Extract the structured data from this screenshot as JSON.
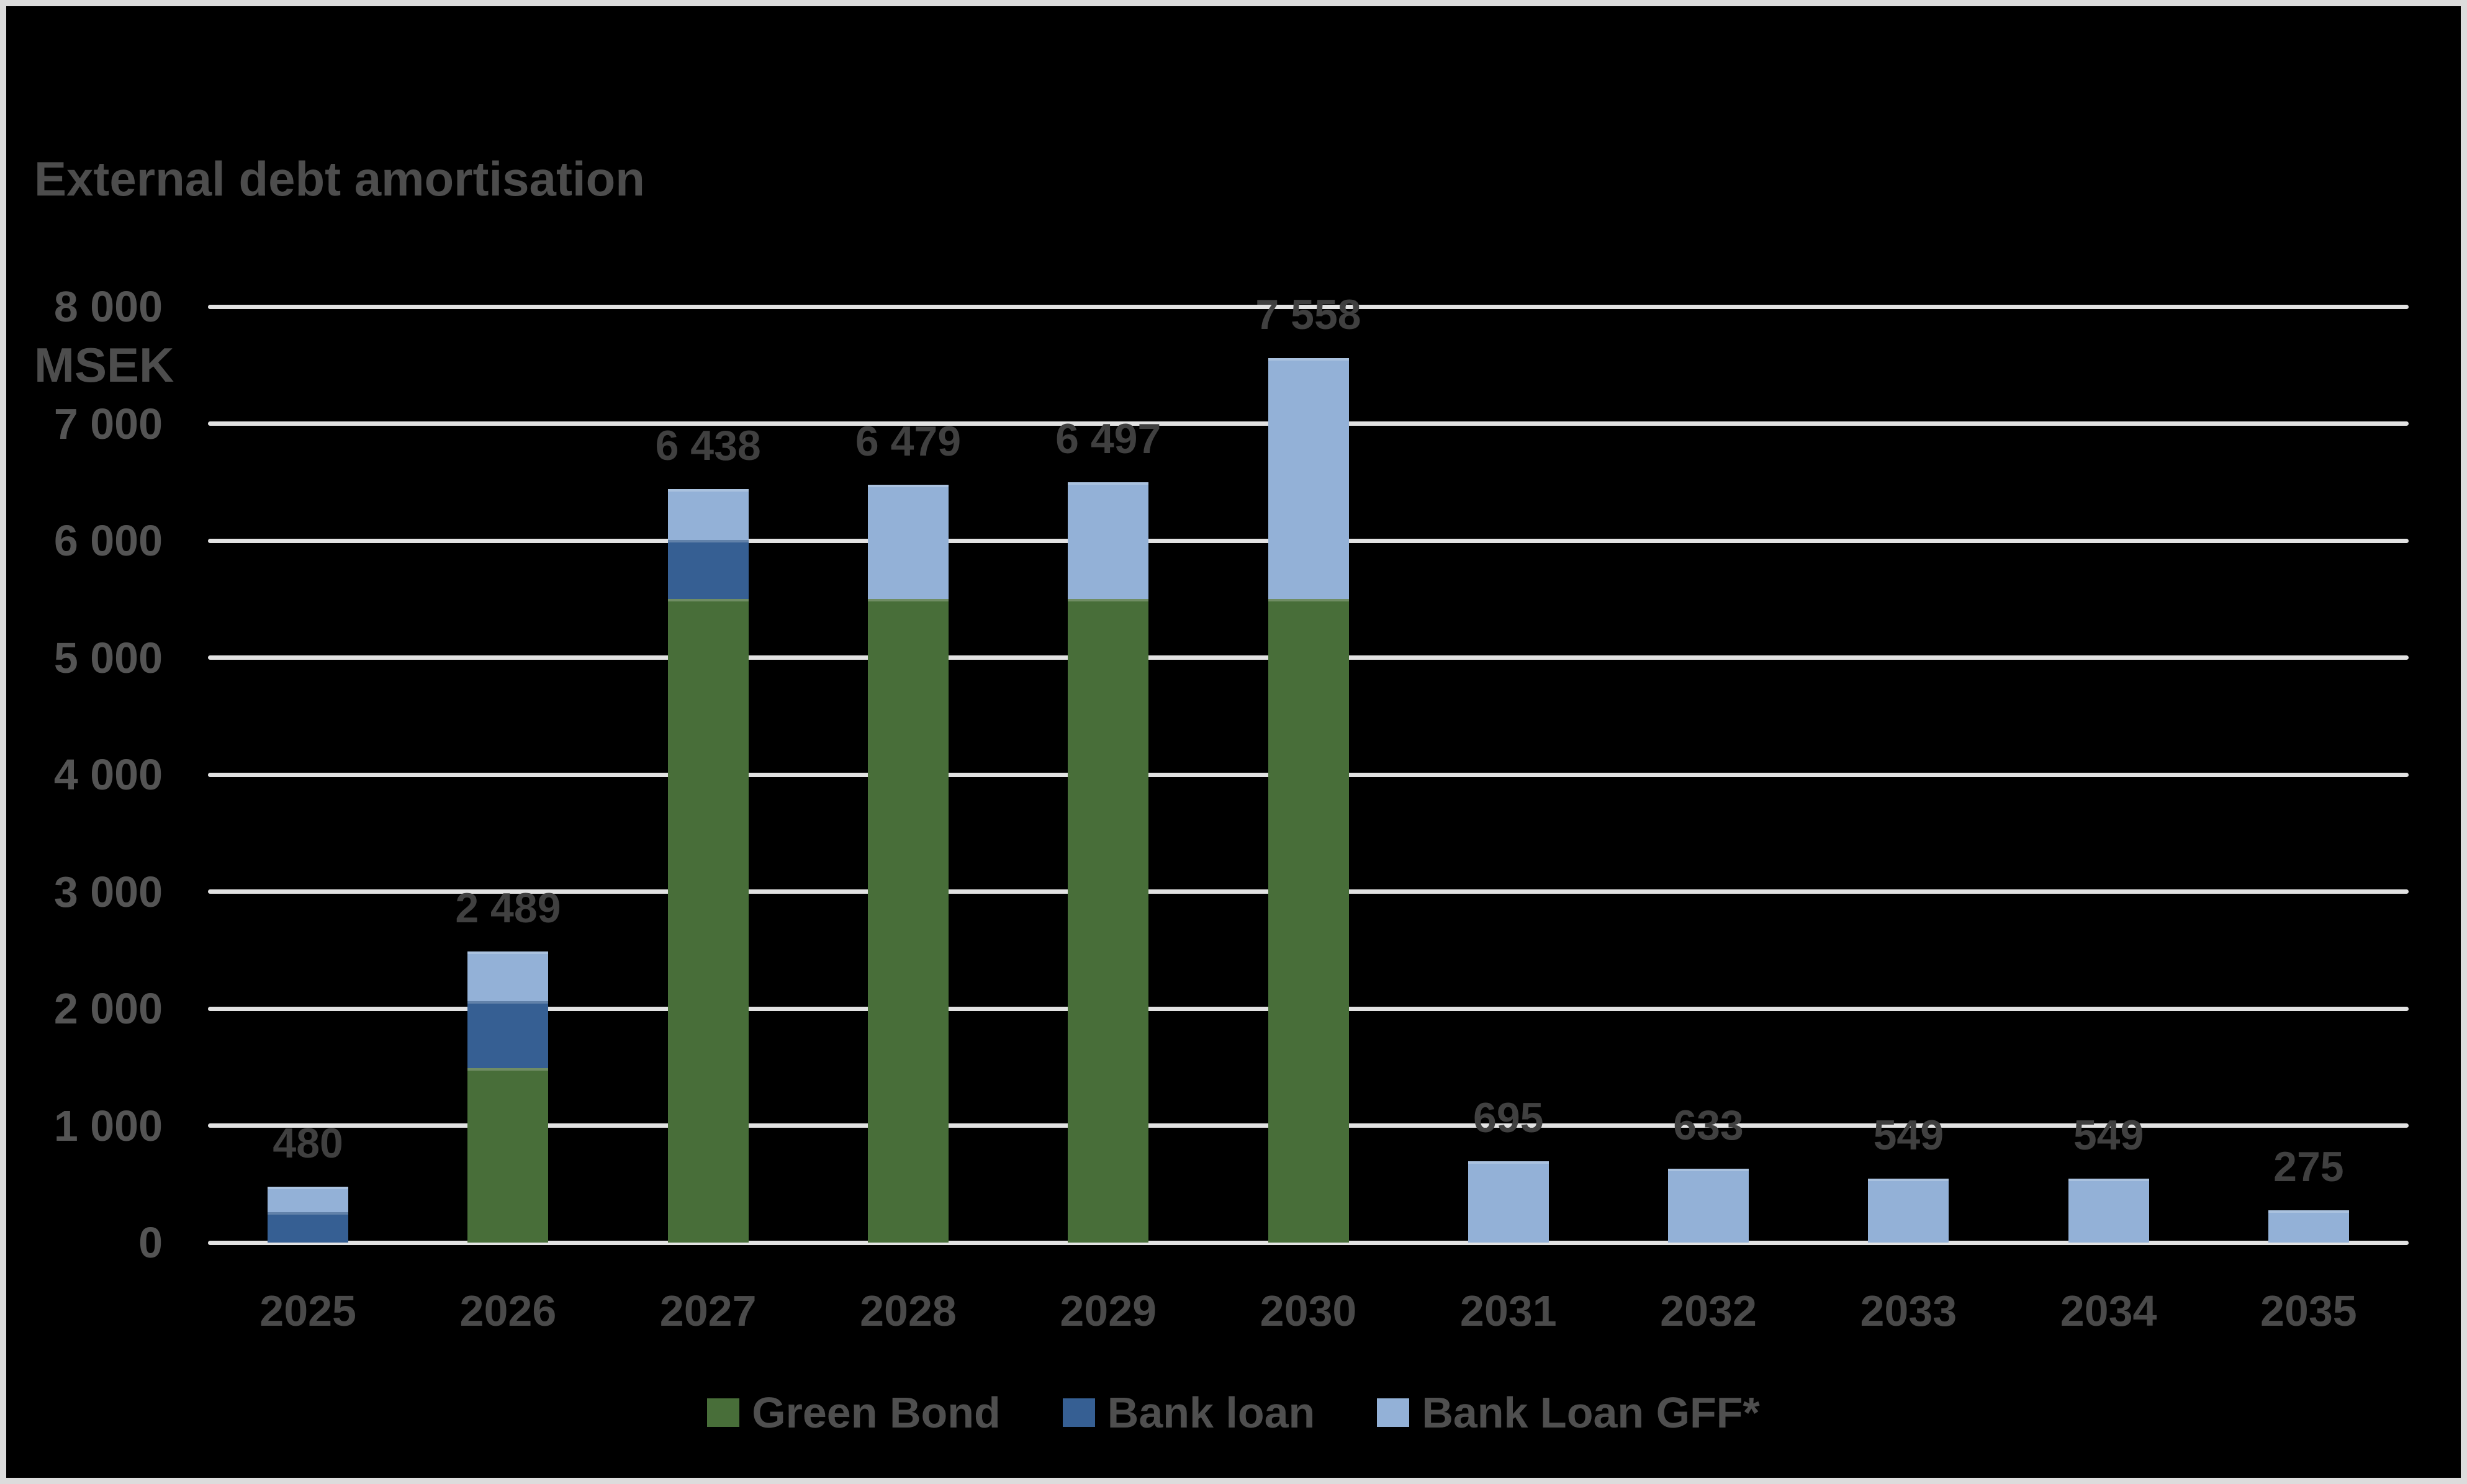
{
  "page": {
    "background_color": "#000000",
    "frame_border_color": "#dcdcdc",
    "gridline_color": "#e2e2e2",
    "title_color": "#4d4d4d",
    "tick_label_color": "#545454",
    "data_label_color": "#404040"
  },
  "chart_data": {
    "type": "bar",
    "stacked": true,
    "title": "External debt amortisation",
    "unit_label": "MSEK",
    "categories": [
      "2025",
      "2026",
      "2027",
      "2028",
      "2029",
      "2030",
      "2031",
      "2032",
      "2033",
      "2034",
      "2035"
    ],
    "series": [
      {
        "name": "Green Bond",
        "color": "#486e39",
        "values": [
          0,
          1490,
          5500,
          5500,
          5500,
          5500,
          0,
          0,
          0,
          0,
          0
        ]
      },
      {
        "name": "Bank loan",
        "color": "#365f93",
        "values": [
          260,
          575,
          505,
          0,
          0,
          0,
          0,
          0,
          0,
          0,
          0
        ]
      },
      {
        "name": "Bank Loan GFF*",
        "color": "#93b1d7",
        "values": [
          220,
          424,
          433,
          979,
          997,
          2058,
          695,
          633,
          549,
          549,
          275
        ]
      }
    ],
    "totals": [
      480,
      2489,
      6438,
      6479,
      6497,
      7558,
      695,
      633,
      549,
      549,
      275
    ],
    "total_labels": [
      "480",
      "2 489",
      "6 438",
      "6 479",
      "6 497",
      "7 558",
      "695",
      "633",
      "549",
      "549",
      "275"
    ],
    "y_axis": {
      "min": 0,
      "max": 8000,
      "step": 1000,
      "tick_labels": [
        "0",
        "1 000",
        "2 000",
        "3 000",
        "4 000",
        "5 000",
        "6 000",
        "7 000",
        "8 000"
      ]
    },
    "grid": true,
    "legend_position": "bottom"
  }
}
